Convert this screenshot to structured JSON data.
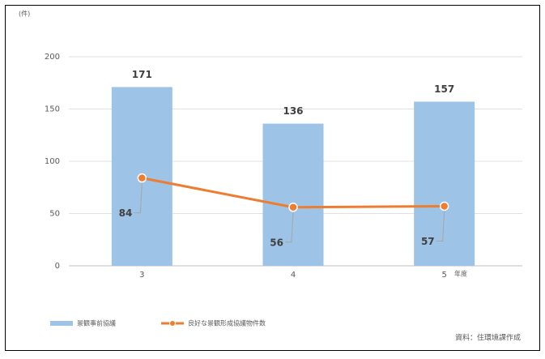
{
  "chart_data": {
    "type": "bar",
    "y_unit": "(件)",
    "x_unit": "年度",
    "source": "資料：住環境課作成",
    "categories": [
      "3",
      "4",
      "5"
    ],
    "series": [
      {
        "name": "景観事前協議",
        "type": "bar",
        "color": "#9dc3e6",
        "values": [
          171,
          136,
          157
        ]
      },
      {
        "name": "良好な景観形成協議物件数",
        "type": "line",
        "color": "#ed7d31",
        "values": [
          84,
          56,
          57
        ]
      }
    ],
    "ylim": [
      0,
      200
    ],
    "yticks": [
      0,
      50,
      100,
      150,
      200
    ],
    "grid": true
  }
}
